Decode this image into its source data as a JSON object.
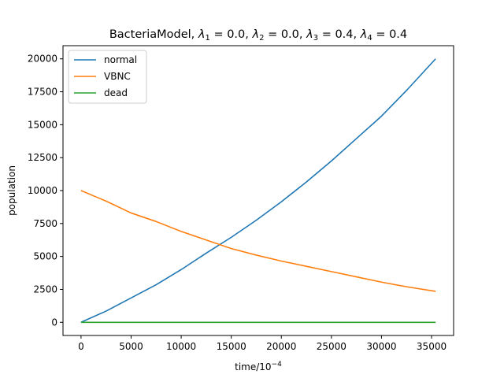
{
  "chart_data": {
    "type": "line",
    "title": "BacteriaModel, λ₁ = 0.0, λ₂ = 0.0, λ₃ = 0.4, λ₄ = 0.4",
    "xlabel": "time/10⁻⁴",
    "ylabel": "population",
    "xlim": [
      -1800,
      37200
    ],
    "ylim": [
      -1000,
      21000
    ],
    "xticks": [
      0,
      5000,
      10000,
      15000,
      20000,
      25000,
      30000,
      35000
    ],
    "yticks": [
      0,
      2500,
      5000,
      7500,
      10000,
      12500,
      15000,
      17500,
      20000
    ],
    "grid": false,
    "legend_position": "upper-left",
    "series": [
      {
        "name": "normal",
        "color": "#1f77b4",
        "x": [
          0,
          2500,
          5000,
          7500,
          10000,
          12500,
          15000,
          17500,
          20000,
          22500,
          25000,
          27500,
          30000,
          32500,
          35400
        ],
        "y": [
          0,
          850,
          1850,
          2850,
          4000,
          5250,
          6450,
          7750,
          9150,
          10650,
          12250,
          13950,
          15650,
          17600,
          20000
        ]
      },
      {
        "name": "VBNC",
        "color": "#ff7f0e",
        "x": [
          0,
          2500,
          5000,
          7500,
          10000,
          12500,
          15000,
          17500,
          20000,
          22500,
          25000,
          27500,
          30000,
          32500,
          35400
        ],
        "y": [
          10000,
          9200,
          8300,
          7650,
          6900,
          6250,
          5600,
          5100,
          4650,
          4250,
          3850,
          3450,
          3050,
          2700,
          2350
        ]
      },
      {
        "name": "dead",
        "color": "#2ca02c",
        "x": [
          0,
          35400
        ],
        "y": [
          0,
          0
        ]
      }
    ]
  }
}
